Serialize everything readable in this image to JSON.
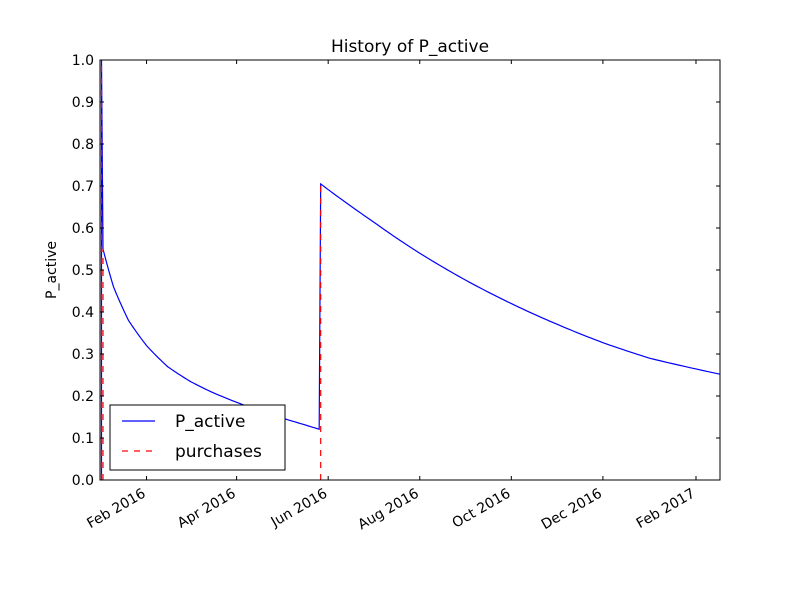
{
  "chart_data": {
    "type": "line",
    "title": "History of P_active",
    "xlabel": "",
    "ylabel": "P_active",
    "xlim": [
      "2016-01-01",
      "2017-02-17"
    ],
    "ylim": [
      0,
      1.0
    ],
    "x_ticks": [
      "2016-02-01",
      "2016-04-01",
      "2016-06-01",
      "2016-08-01",
      "2016-10-01",
      "2016-12-01",
      "2017-02-01"
    ],
    "x_tick_labels": [
      "Feb 2016",
      "Apr 2016",
      "Jun 2016",
      "Aug 2016",
      "Oct 2016",
      "Dec 2016",
      "Feb 2017"
    ],
    "y_ticks": [
      0.0,
      0.1,
      0.2,
      0.3,
      0.4,
      0.5,
      0.6,
      0.7,
      0.8,
      0.9,
      1.0
    ],
    "y_tick_labels": [
      "0.0",
      "0.1",
      "0.2",
      "0.3",
      "0.4",
      "0.5",
      "0.6",
      "0.7",
      "0.8",
      "0.9",
      "1.0"
    ],
    "series": [
      {
        "name": "P_active",
        "style": "solid",
        "color": "#0000ff",
        "points": [
          [
            "2016-01-02",
            0.0
          ],
          [
            "2016-01-02",
            1.0
          ],
          [
            "2016-01-03",
            0.55
          ],
          [
            "2016-01-10",
            0.46
          ],
          [
            "2016-01-20",
            0.38
          ],
          [
            "2016-02-01",
            0.32
          ],
          [
            "2016-02-15",
            0.27
          ],
          [
            "2016-03-01",
            0.235
          ],
          [
            "2016-03-15",
            0.21
          ],
          [
            "2016-04-01",
            0.185
          ],
          [
            "2016-04-15",
            0.167
          ],
          [
            "2016-05-01",
            0.148
          ],
          [
            "2016-05-15",
            0.133
          ],
          [
            "2016-05-26",
            0.121
          ],
          [
            "2016-05-27",
            0.705
          ],
          [
            "2016-06-15",
            0.655
          ],
          [
            "2016-07-01",
            0.615
          ],
          [
            "2016-08-01",
            0.54
          ],
          [
            "2016-09-01",
            0.475
          ],
          [
            "2016-10-01",
            0.42
          ],
          [
            "2016-11-01",
            0.37
          ],
          [
            "2016-12-01",
            0.327
          ],
          [
            "2017-01-01",
            0.29
          ],
          [
            "2017-02-17",
            0.252
          ]
        ]
      },
      {
        "name": "purchases",
        "style": "dashed",
        "color": "#ff0000",
        "events": [
          {
            "x": "2016-01-02",
            "y": 1.0
          },
          {
            "x": "2016-01-03",
            "y": 0.55
          },
          {
            "x": "2016-05-27",
            "y": 0.705
          }
        ]
      }
    ],
    "legend": {
      "position": "lower-left",
      "entries": [
        "P_active",
        "purchases"
      ]
    },
    "grid": false
  }
}
